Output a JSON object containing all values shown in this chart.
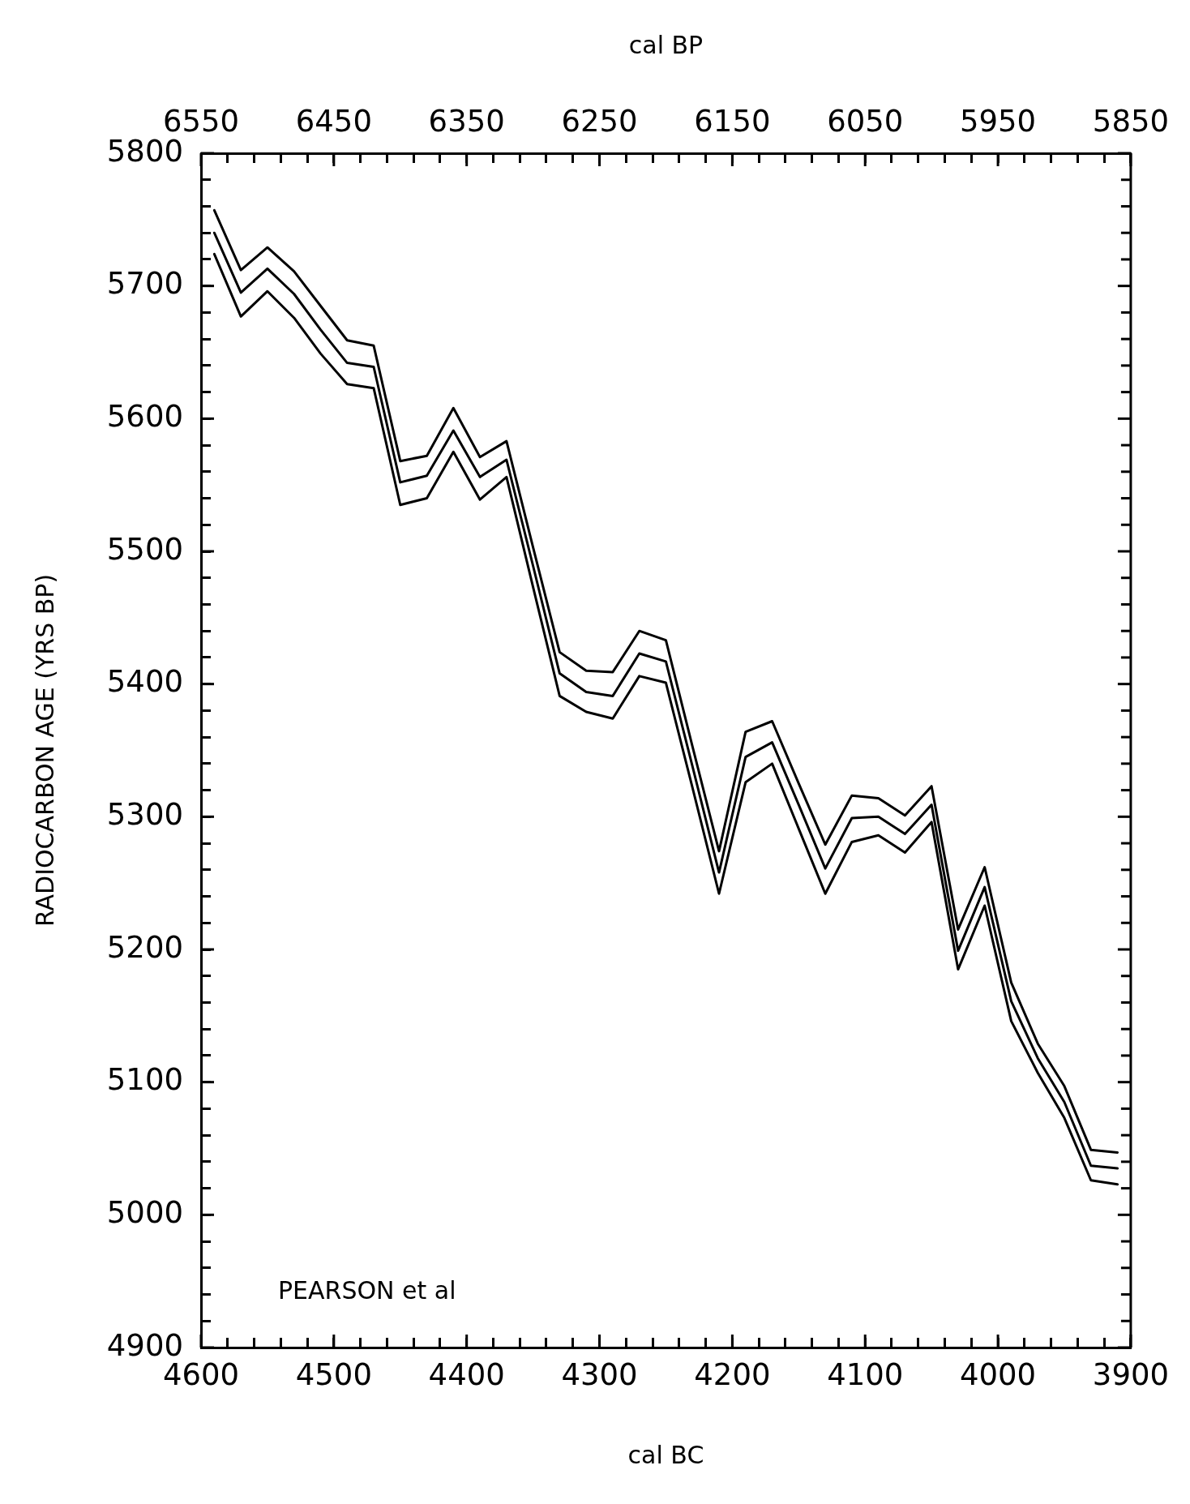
{
  "chart_data": {
    "type": "line",
    "xlabel": "cal BC",
    "x2label": "cal BP",
    "ylabel": "RADIOCARBON AGE (YRS BP)",
    "annotations": [
      "PEARSON et al"
    ],
    "x": [
      4590,
      4570,
      4550,
      4530,
      4510,
      4490,
      4470,
      4450,
      4430,
      4410,
      4390,
      4370,
      4350,
      4330,
      4310,
      4290,
      4270,
      4250,
      4230,
      4210,
      4190,
      4170,
      4150,
      4130,
      4110,
      4090,
      4070,
      4050,
      4030,
      4010,
      3990,
      3970,
      3950,
      3930,
      3910
    ],
    "series": [
      {
        "color": "#000000",
        "values": [
          5757,
          5712,
          5729,
          5711,
          5685,
          5659,
          5655,
          5568,
          5572,
          5608,
          5571,
          5583,
          5503,
          5424,
          5410,
          5409,
          5440,
          5433,
          5353,
          5274,
          5364,
          5372,
          5325,
          5279,
          5316,
          5314,
          5301,
          5323,
          5215,
          5262,
          5175,
          5129,
          5097,
          5049,
          5047
        ]
      },
      {
        "color": "#000000",
        "values": [
          5740,
          5695,
          5713,
          5694,
          5667,
          5642,
          5639,
          5552,
          5557,
          5591,
          5556,
          5569,
          5489,
          5408,
          5394,
          5391,
          5423,
          5417,
          5338,
          5258,
          5345,
          5356,
          5309,
          5261,
          5299,
          5300,
          5287,
          5309,
          5199,
          5247,
          5161,
          5118,
          5085,
          5037,
          5035
        ]
      },
      {
        "color": "#000000",
        "values": [
          5724,
          5677,
          5696,
          5676,
          5649,
          5626,
          5623,
          5535,
          5540,
          5575,
          5539,
          5556,
          5473,
          5391,
          5379,
          5374,
          5406,
          5401,
          5322,
          5242,
          5326,
          5340,
          5291,
          5242,
          5281,
          5286,
          5273,
          5296,
          5185,
          5233,
          5146,
          5107,
          5073,
          5026,
          5023
        ]
      }
    ],
    "xlim": [
      4600,
      3900
    ],
    "xticks": [
      4600,
      {
        "value": 4580,
        "label": null
      },
      {
        "value": 4560,
        "label": null
      },
      {
        "value": 4540,
        "label": null
      },
      {
        "value": 4520,
        "label": null
      },
      4500,
      {
        "value": 4480,
        "label": null
      },
      {
        "value": 4460,
        "label": null
      },
      {
        "value": 4440,
        "label": null
      },
      {
        "value": 4420,
        "label": null
      },
      4400,
      {
        "value": 4380,
        "label": null
      },
      {
        "value": 4360,
        "label": null
      },
      {
        "value": 4340,
        "label": null
      },
      {
        "value": 4320,
        "label": null
      },
      4300,
      {
        "value": 4280,
        "label": null
      },
      {
        "value": 4260,
        "label": null
      },
      {
        "value": 4240,
        "label": null
      },
      {
        "value": 4220,
        "label": null
      },
      4200,
      {
        "value": 4180,
        "label": null
      },
      {
        "value": 4160,
        "label": null
      },
      {
        "value": 4140,
        "label": null
      },
      {
        "value": 4120,
        "label": null
      },
      4100,
      {
        "value": 4080,
        "label": null
      },
      {
        "value": 4060,
        "label": null
      },
      {
        "value": 4040,
        "label": null
      },
      {
        "value": 4020,
        "label": null
      },
      4000,
      {
        "value": 3980,
        "label": null
      },
      {
        "value": 3960,
        "label": null
      },
      {
        "value": 3940,
        "label": null
      },
      {
        "value": 3920,
        "label": null
      },
      3900
    ],
    "x2lim": [
      6550,
      5850
    ],
    "x2ticks": [
      6550,
      {
        "value": 6530,
        "label": null
      },
      {
        "value": 6510,
        "label": null
      },
      {
        "value": 6490,
        "label": null
      },
      {
        "value": 6470,
        "label": null
      },
      6450,
      {
        "value": 6430,
        "label": null
      },
      {
        "value": 6410,
        "label": null
      },
      {
        "value": 6390,
        "label": null
      },
      {
        "value": 6370,
        "label": null
      },
      6350,
      {
        "value": 6330,
        "label": null
      },
      {
        "value": 6310,
        "label": null
      },
      {
        "value": 6290,
        "label": null
      },
      {
        "value": 6270,
        "label": null
      },
      6250,
      {
        "value": 6230,
        "label": null
      },
      {
        "value": 6210,
        "label": null
      },
      {
        "value": 6190,
        "label": null
      },
      {
        "value": 6170,
        "label": null
      },
      6150,
      {
        "value": 6130,
        "label": null
      },
      {
        "value": 6110,
        "label": null
      },
      {
        "value": 6090,
        "label": null
      },
      {
        "value": 6070,
        "label": null
      },
      6050,
      {
        "value": 6030,
        "label": null
      },
      {
        "value": 6010,
        "label": null
      },
      {
        "value": 5990,
        "label": null
      },
      {
        "value": 5970,
        "label": null
      },
      5950,
      {
        "value": 5930,
        "label": null
      },
      {
        "value": 5910,
        "label": null
      },
      {
        "value": 5890,
        "label": null
      },
      {
        "value": 5870,
        "label": null
      },
      5850
    ],
    "ylim": [
      4900,
      5800
    ],
    "yticks": [
      4900,
      {
        "value": 4920,
        "label": null
      },
      {
        "value": 4940,
        "label": null
      },
      {
        "value": 4960,
        "label": null
      },
      {
        "value": 4980,
        "label": null
      },
      5000,
      {
        "value": 5020,
        "label": null
      },
      {
        "value": 5040,
        "label": null
      },
      {
        "value": 5060,
        "label": null
      },
      {
        "value": 5080,
        "label": null
      },
      5100,
      {
        "value": 5120,
        "label": null
      },
      {
        "value": 5140,
        "label": null
      },
      {
        "value": 5160,
        "label": null
      },
      {
        "value": 5180,
        "label": null
      },
      5200,
      {
        "value": 5220,
        "label": null
      },
      {
        "value": 5240,
        "label": null
      },
      {
        "value": 5260,
        "label": null
      },
      {
        "value": 5280,
        "label": null
      },
      5300,
      {
        "value": 5320,
        "label": null
      },
      {
        "value": 5340,
        "label": null
      },
      {
        "value": 5360,
        "label": null
      },
      {
        "value": 5380,
        "label": null
      },
      5400,
      {
        "value": 5420,
        "label": null
      },
      {
        "value": 5440,
        "label": null
      },
      {
        "value": 5460,
        "label": null
      },
      {
        "value": 5480,
        "label": null
      },
      5500,
      {
        "value": 5520,
        "label": null
      },
      {
        "value": 5540,
        "label": null
      },
      {
        "value": 5560,
        "label": null
      },
      {
        "value": 5580,
        "label": null
      },
      5600,
      {
        "value": 5620,
        "label": null
      },
      {
        "value": 5640,
        "label": null
      },
      {
        "value": 5660,
        "label": null
      },
      {
        "value": 5680,
        "label": null
      },
      5700,
      {
        "value": 5720,
        "label": null
      },
      {
        "value": 5740,
        "label": null
      },
      {
        "value": 5760,
        "label": null
      },
      {
        "value": 5780,
        "label": null
      },
      5800
    ]
  }
}
